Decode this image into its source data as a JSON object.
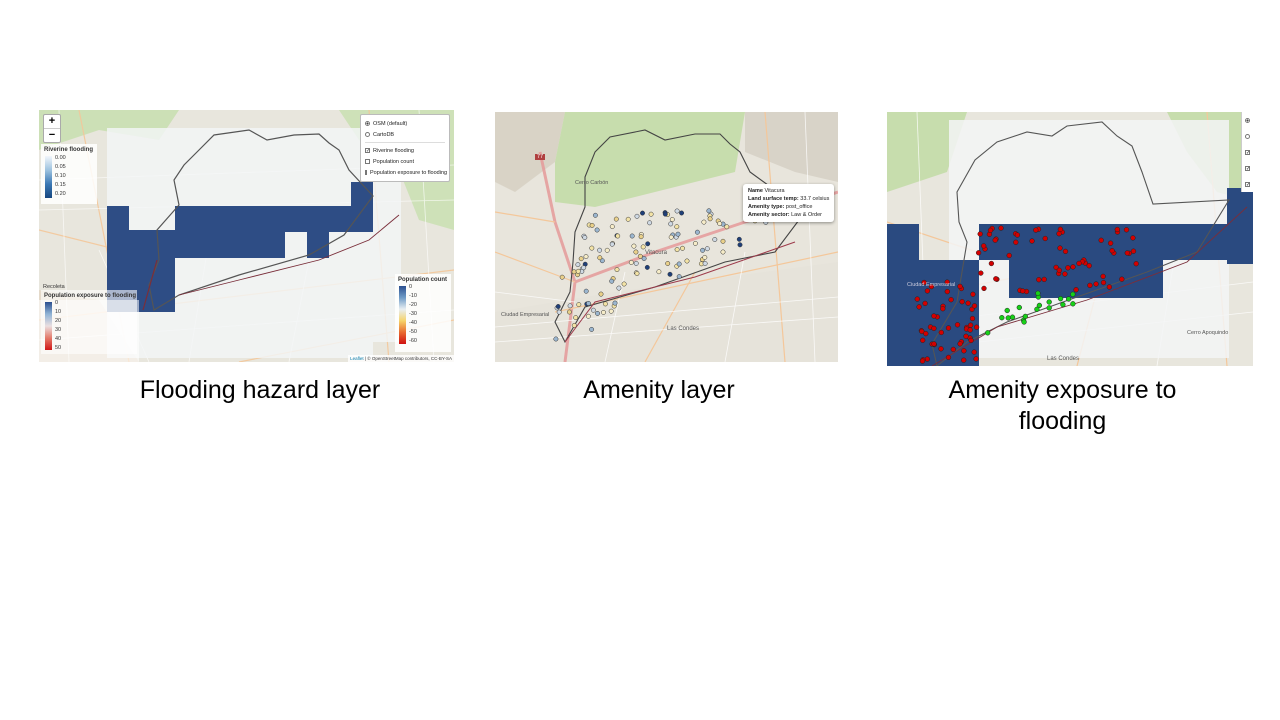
{
  "captions": {
    "panel1": "Flooding hazard layer",
    "panel2": "Amenity layer",
    "panel3_line1": "Amenity exposure to",
    "panel3_line2": "flooding"
  },
  "panel1": {
    "zoom_in": "+",
    "zoom_out": "−",
    "layers": {
      "base": [
        {
          "label": "OSM (default)",
          "selected": true
        },
        {
          "label": "CartoDB",
          "selected": false
        }
      ],
      "overlays": [
        {
          "label": "Riverine flooding",
          "checked": true
        },
        {
          "label": "Population count",
          "checked": false
        },
        {
          "label": "Population exposure to flooding",
          "checked": false
        }
      ]
    },
    "legend_flood": {
      "title": "Riverine flooding",
      "ticks": [
        "0.00",
        "0.05",
        "0.10",
        "0.15",
        "0.20"
      ]
    },
    "legend_popcount": {
      "title": "Population count",
      "ticks": [
        "0",
        "-10",
        "-20",
        "-30",
        "-40",
        "-50",
        "-60"
      ]
    },
    "legend_exposure": {
      "title": "Population exposure to flooding",
      "ticks": [
        "0",
        "10",
        "20",
        "30",
        "40",
        "50"
      ]
    },
    "attribution": {
      "leaflet": "Leaflet",
      "rest": " | © OpenStreetMap contributors, CC-BY-SA"
    },
    "place_labels": [
      "Recoleta"
    ]
  },
  "panel2": {
    "popup": [
      {
        "key": "Name",
        "value": "Vitacura"
      },
      {
        "key": "Land surface temp",
        "value": "33.7 celsius"
      },
      {
        "key": "Amenity type",
        "value": "post_office"
      },
      {
        "key": "Amenity sector",
        "value": "Law & Order"
      }
    ],
    "place_labels": [
      "Cerro Carbón",
      "Ciudad Empresarial",
      "Vitacura",
      "Las Condes",
      "77"
    ]
  },
  "panel3": {
    "control_states": [
      "radio-on",
      "radio-off",
      "check",
      "check",
      "check"
    ],
    "place_labels": [
      "Ciudad Empresarial",
      "Las Condes",
      "Cerro Apoquindo"
    ]
  },
  "colors": {
    "map_bg": "#e9ecdf",
    "park_green": "#c9dfb1",
    "flood_blue": "#2f4f86",
    "flood_cell": "#2a4a80",
    "amenity_red": "#d40000",
    "amenity_green": "#17d017"
  }
}
